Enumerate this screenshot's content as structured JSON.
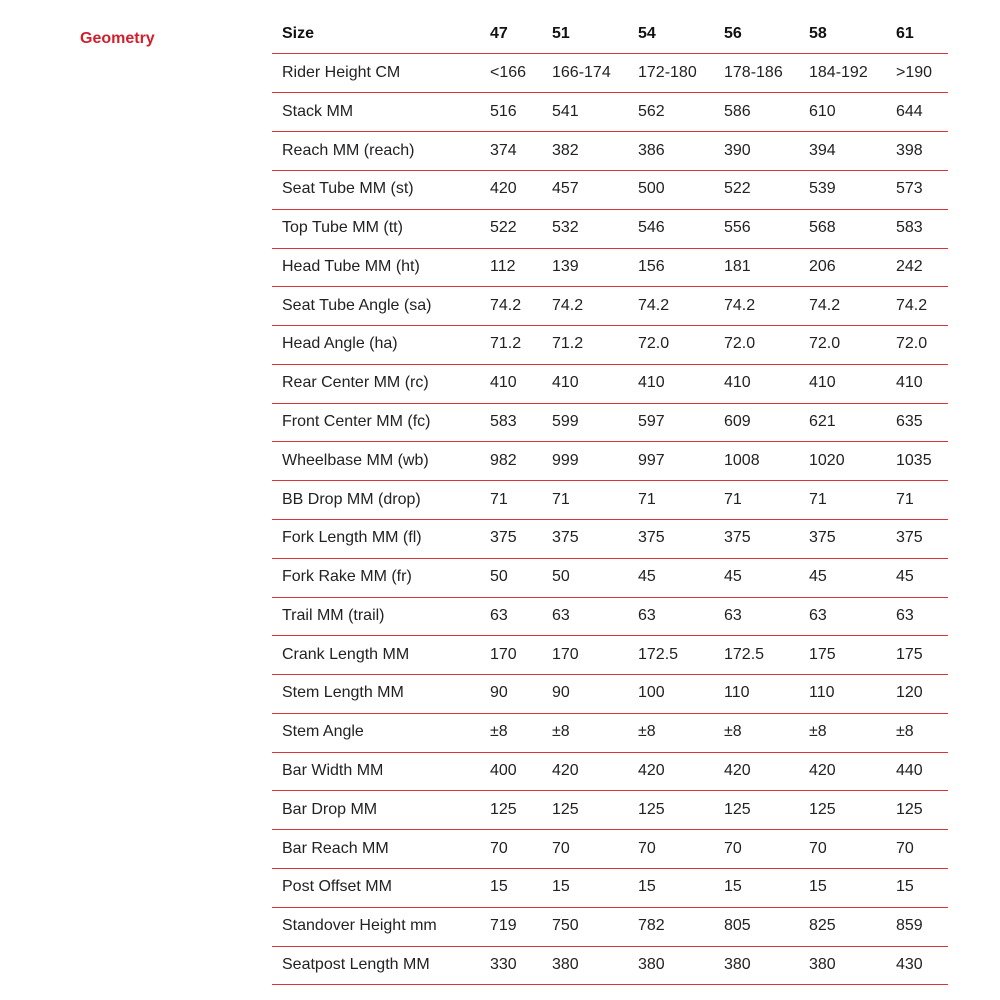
{
  "section": {
    "title": "Geometry"
  },
  "table": {
    "header": [
      "Size",
      "47",
      "51",
      "54",
      "56",
      "58",
      "61"
    ],
    "rows": [
      [
        "Rider Height CM",
        "<166",
        "166-174",
        "172-180",
        "178-186",
        "184-192",
        ">190"
      ],
      [
        "Stack MM",
        "516",
        "541",
        "562",
        "586",
        "610",
        "644"
      ],
      [
        "Reach MM (reach)",
        "374",
        "382",
        "386",
        "390",
        "394",
        "398"
      ],
      [
        "Seat Tube MM (st)",
        "420",
        "457",
        "500",
        "522",
        "539",
        "573"
      ],
      [
        "Top Tube MM (tt)",
        "522",
        "532",
        "546",
        "556",
        "568",
        "583"
      ],
      [
        "Head Tube MM (ht)",
        "112",
        "139",
        "156",
        "181",
        "206",
        "242"
      ],
      [
        "Seat Tube Angle (sa)",
        "74.2",
        "74.2",
        "74.2",
        "74.2",
        "74.2",
        "74.2"
      ],
      [
        "Head Angle (ha)",
        "71.2",
        "71.2",
        "72.0",
        "72.0",
        "72.0",
        "72.0"
      ],
      [
        "Rear Center MM (rc)",
        "410",
        "410",
        "410",
        "410",
        "410",
        "410"
      ],
      [
        "Front Center MM (fc)",
        "583",
        "599",
        "597",
        "609",
        "621",
        "635"
      ],
      [
        "Wheelbase MM (wb)",
        "982",
        "999",
        "997",
        "1008",
        "1020",
        "1035"
      ],
      [
        "BB Drop MM (drop)",
        "71",
        "71",
        "71",
        "71",
        "71",
        "71"
      ],
      [
        "Fork Length MM (fl)",
        "375",
        "375",
        "375",
        "375",
        "375",
        "375"
      ],
      [
        "Fork Rake MM (fr)",
        "50",
        "50",
        "45",
        "45",
        "45",
        "45"
      ],
      [
        "Trail MM (trail)",
        "63",
        "63",
        "63",
        "63",
        "63",
        "63"
      ],
      [
        "Crank Length MM",
        "170",
        "170",
        "172.5",
        "172.5",
        "175",
        "175"
      ],
      [
        "Stem Length MM",
        "90",
        "90",
        "100",
        "110",
        "110",
        "120"
      ],
      [
        "Stem Angle",
        "±8",
        "±8",
        "±8",
        "±8",
        "±8",
        "±8"
      ],
      [
        "Bar Width MM",
        "400",
        "420",
        "420",
        "420",
        "420",
        "440"
      ],
      [
        "Bar Drop MM",
        "125",
        "125",
        "125",
        "125",
        "125",
        "125"
      ],
      [
        "Bar Reach MM",
        "70",
        "70",
        "70",
        "70",
        "70",
        "70"
      ],
      [
        "Post Offset MM",
        "15",
        "15",
        "15",
        "15",
        "15",
        "15"
      ],
      [
        "Standover Height mm",
        "719",
        "750",
        "782",
        "805",
        "825",
        "859"
      ],
      [
        "Seatpost Length MM",
        "330",
        "380",
        "380",
        "380",
        "380",
        "430"
      ]
    ]
  }
}
